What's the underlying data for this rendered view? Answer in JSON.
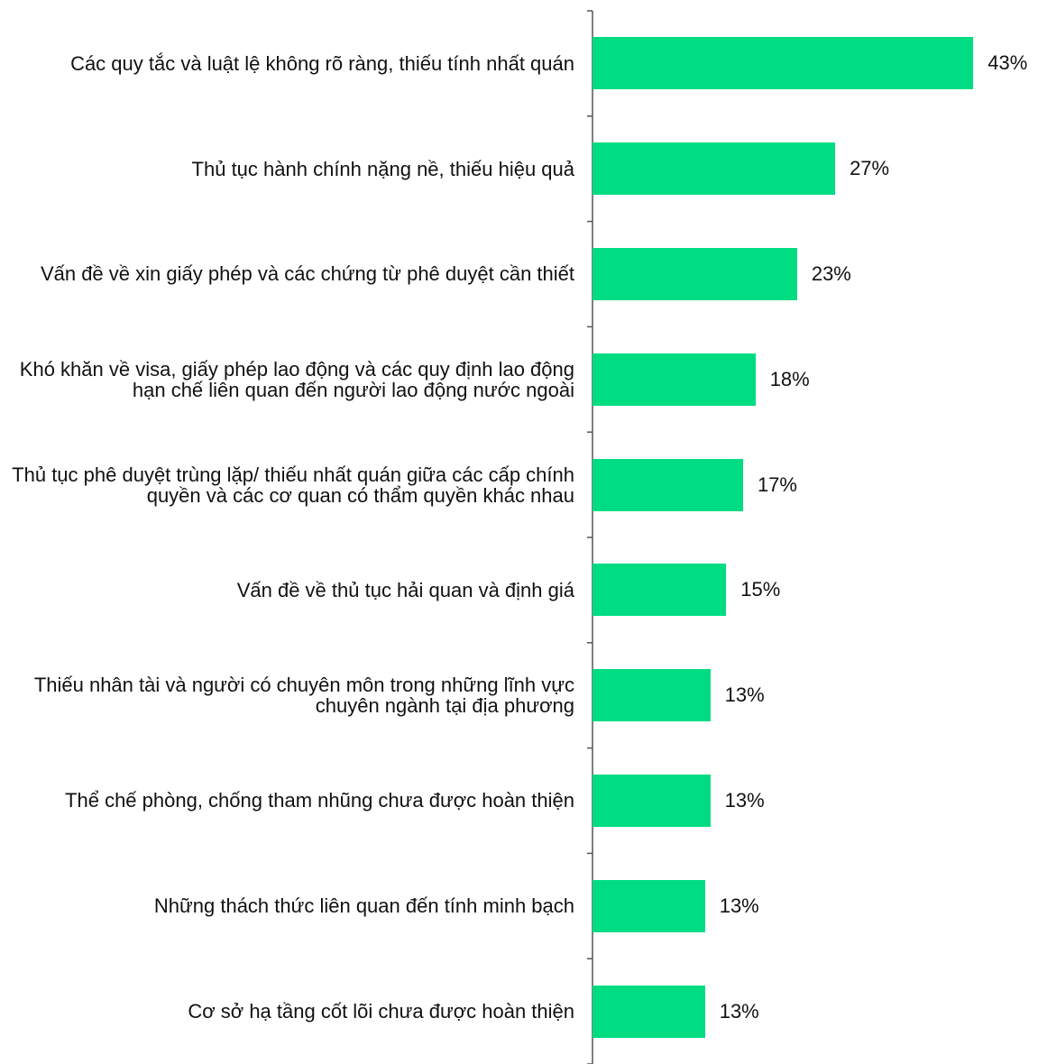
{
  "chart_data": {
    "type": "bar",
    "orientation": "horizontal",
    "categories": [
      "Các quy tắc và luật lệ không rõ ràng, thiếu tính nhất quán",
      "Thủ tục hành chính nặng nề, thiếu hiệu quả",
      "Vấn đề về xin giấy phép và các chứng từ phê duyệt cần thiết",
      "Khó khăn về visa, giấy phép lao động và các quy định lao động hạn chế liên quan đến người lao động nước ngoài",
      "Thủ tục phê duyệt trùng lặp/ thiếu nhất quán giữa các cấp chính quyền và các cơ quan có thẩm quyền khác nhau",
      "Vấn đề về thủ tục hải quan và định giá",
      "Thiếu nhân tài và người có chuyên môn trong những lĩnh vực chuyên ngành tại địa phương",
      "Thể chế phòng, chống tham nhũng chưa được hoàn thiện",
      "Những thách thức liên quan đến tính minh bạch",
      "Cơ sở hạ tầng cốt lõi chưa được hoàn thiện"
    ],
    "values": [
      43,
      27.4,
      23.1,
      18.4,
      17,
      15.1,
      13.3,
      13.3,
      12.7,
      12.7
    ],
    "value_labels": [
      "43%",
      "27%",
      "23%",
      "18%",
      "17%",
      "15%",
      "13%",
      "13%",
      "13%",
      "13%"
    ],
    "color": "#00dc82",
    "xlim": [
      0,
      50
    ]
  }
}
